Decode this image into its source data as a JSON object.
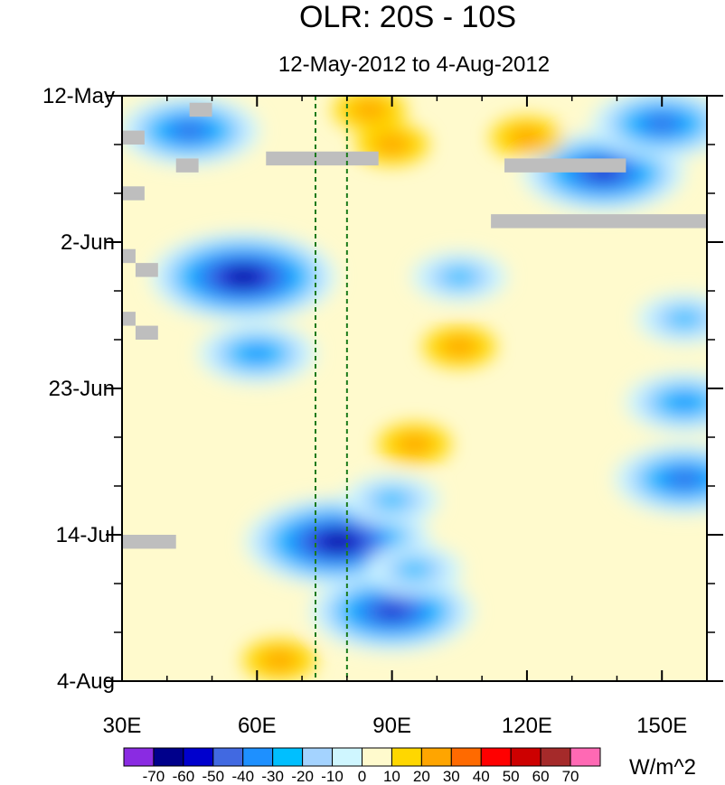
{
  "chart_data": {
    "type": "heatmap",
    "title": "OLR: 20S - 10S",
    "subtitle": "12-May-2012 to 4-Aug-2012",
    "x_ticks": [
      "30E",
      "60E",
      "90E",
      "120E",
      "150E"
    ],
    "x_tick_values": [
      30,
      60,
      90,
      120,
      150
    ],
    "x_range": [
      30,
      160
    ],
    "y_ticks": [
      "12-May",
      "2-Jun",
      "23-Jun",
      "14-Jul",
      "4-Aug"
    ],
    "y_tick_days": [
      0,
      21,
      42,
      63,
      84
    ],
    "y_range": [
      0,
      84
    ],
    "reference_lines_lon": [
      73,
      80
    ],
    "units": "W/m^2",
    "colorbar": {
      "labels": [
        "-70",
        "-60",
        "-50",
        "-40",
        "-30",
        "-20",
        "-10",
        "0",
        "10",
        "20",
        "30",
        "40",
        "50",
        "60",
        "70"
      ],
      "colors": [
        "#8a2be2",
        "#00008b",
        "#0000cd",
        "#4169e1",
        "#1e90ff",
        "#00bfff",
        "#a4d3ff",
        "#cff6ff",
        "#fffacd",
        "#ffd700",
        "#ffa500",
        "#ff6a00",
        "#ff0000",
        "#cd0000",
        "#a52a2a",
        "#ff69b4"
      ]
    },
    "features": [
      {
        "lon": 45,
        "day": 5,
        "value": -45
      },
      {
        "lon": 57,
        "day": 26,
        "value": -70
      },
      {
        "lon": 60,
        "day": 37,
        "value": -35
      },
      {
        "lon": 78,
        "day": 64,
        "value": -70
      },
      {
        "lon": 90,
        "day": 74,
        "value": -55
      },
      {
        "lon": 90,
        "day": 58,
        "value": -30
      },
      {
        "lon": 105,
        "day": 26,
        "value": -30
      },
      {
        "lon": 95,
        "day": 68,
        "value": -30
      },
      {
        "lon": 137,
        "day": 11,
        "value": -60
      },
      {
        "lon": 150,
        "day": 4,
        "value": -45
      },
      {
        "lon": 155,
        "day": 44,
        "value": -40
      },
      {
        "lon": 155,
        "day": 55,
        "value": -50
      },
      {
        "lon": 155,
        "day": 32,
        "value": -25
      },
      {
        "lon": 85,
        "day": 2,
        "value": 20
      },
      {
        "lon": 95,
        "day": 50,
        "value": 20
      },
      {
        "lon": 90,
        "day": 7,
        "value": 20
      },
      {
        "lon": 105,
        "day": 36,
        "value": 15
      },
      {
        "lon": 120,
        "day": 6,
        "value": 15
      },
      {
        "lon": 65,
        "day": 81,
        "value": 15
      }
    ],
    "missing_data": [
      {
        "lon0": 45,
        "lon1": 50,
        "day0": 1,
        "day1": 3
      },
      {
        "lon0": 30,
        "lon1": 35,
        "day0": 5,
        "day1": 7
      },
      {
        "lon0": 42,
        "lon1": 47,
        "day0": 9,
        "day1": 11
      },
      {
        "lon0": 62,
        "lon1": 87,
        "day0": 8,
        "day1": 10
      },
      {
        "lon0": 115,
        "lon1": 142,
        "day0": 9,
        "day1": 11
      },
      {
        "lon0": 30,
        "lon1": 35,
        "day0": 13,
        "day1": 15
      },
      {
        "lon0": 112,
        "lon1": 160,
        "day0": 17,
        "day1": 19
      },
      {
        "lon0": 30,
        "lon1": 33,
        "day0": 22,
        "day1": 24
      },
      {
        "lon0": 33,
        "lon1": 38,
        "day0": 24,
        "day1": 26
      },
      {
        "lon0": 30,
        "lon1": 33,
        "day0": 31,
        "day1": 33
      },
      {
        "lon0": 33,
        "lon1": 38,
        "day0": 33,
        "day1": 35
      },
      {
        "lon0": 30,
        "lon1": 42,
        "day0": 63,
        "day1": 65
      }
    ]
  }
}
